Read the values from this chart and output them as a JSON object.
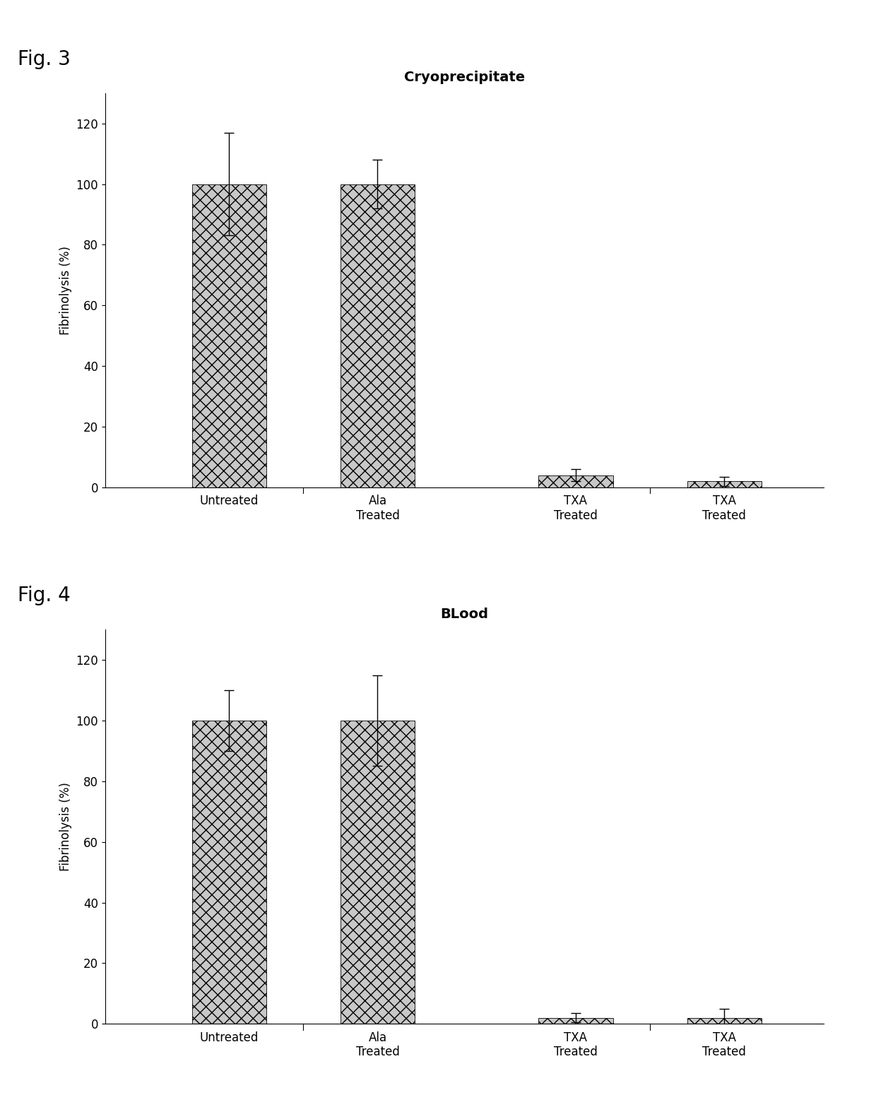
{
  "fig3": {
    "title": "Cryoprecipitate",
    "fig_label": "Fig. 3",
    "categories": [
      "Untreated",
      "Ala\nTreated",
      "TXA\nTreated",
      "TXA\nTreated"
    ],
    "values": [
      100,
      100,
      4,
      2
    ],
    "errors": [
      17,
      8,
      2,
      1.5
    ],
    "ylabel": "Fibrinolysis (%)",
    "ylim": [
      0,
      130
    ],
    "yticks": [
      0,
      20,
      40,
      60,
      80,
      100,
      120
    ]
  },
  "fig4": {
    "title": "BLood",
    "fig_label": "Fig. 4",
    "categories": [
      "Untreated",
      "Ala\nTreated",
      "TXA\nTreated",
      "TXA\nTreated"
    ],
    "values": [
      100,
      100,
      2,
      2
    ],
    "errors": [
      10,
      15,
      1.5,
      3
    ],
    "ylabel": "Fibrinolysis (%)",
    "ylim": [
      0,
      130
    ],
    "yticks": [
      0,
      20,
      40,
      60,
      80,
      100,
      120
    ]
  },
  "bar_color": "#c8c8c8",
  "bar_hatch": "xx",
  "bar_width": 0.6,
  "background_color": "#ffffff",
  "fig_label_fontsize": 20,
  "title_fontsize": 14,
  "tick_fontsize": 12,
  "ylabel_fontsize": 12,
  "xlabel_fontsize": 12,
  "x_positions": [
    1.0,
    2.2,
    3.8,
    5.0
  ],
  "xlim": [
    0.0,
    5.8
  ]
}
